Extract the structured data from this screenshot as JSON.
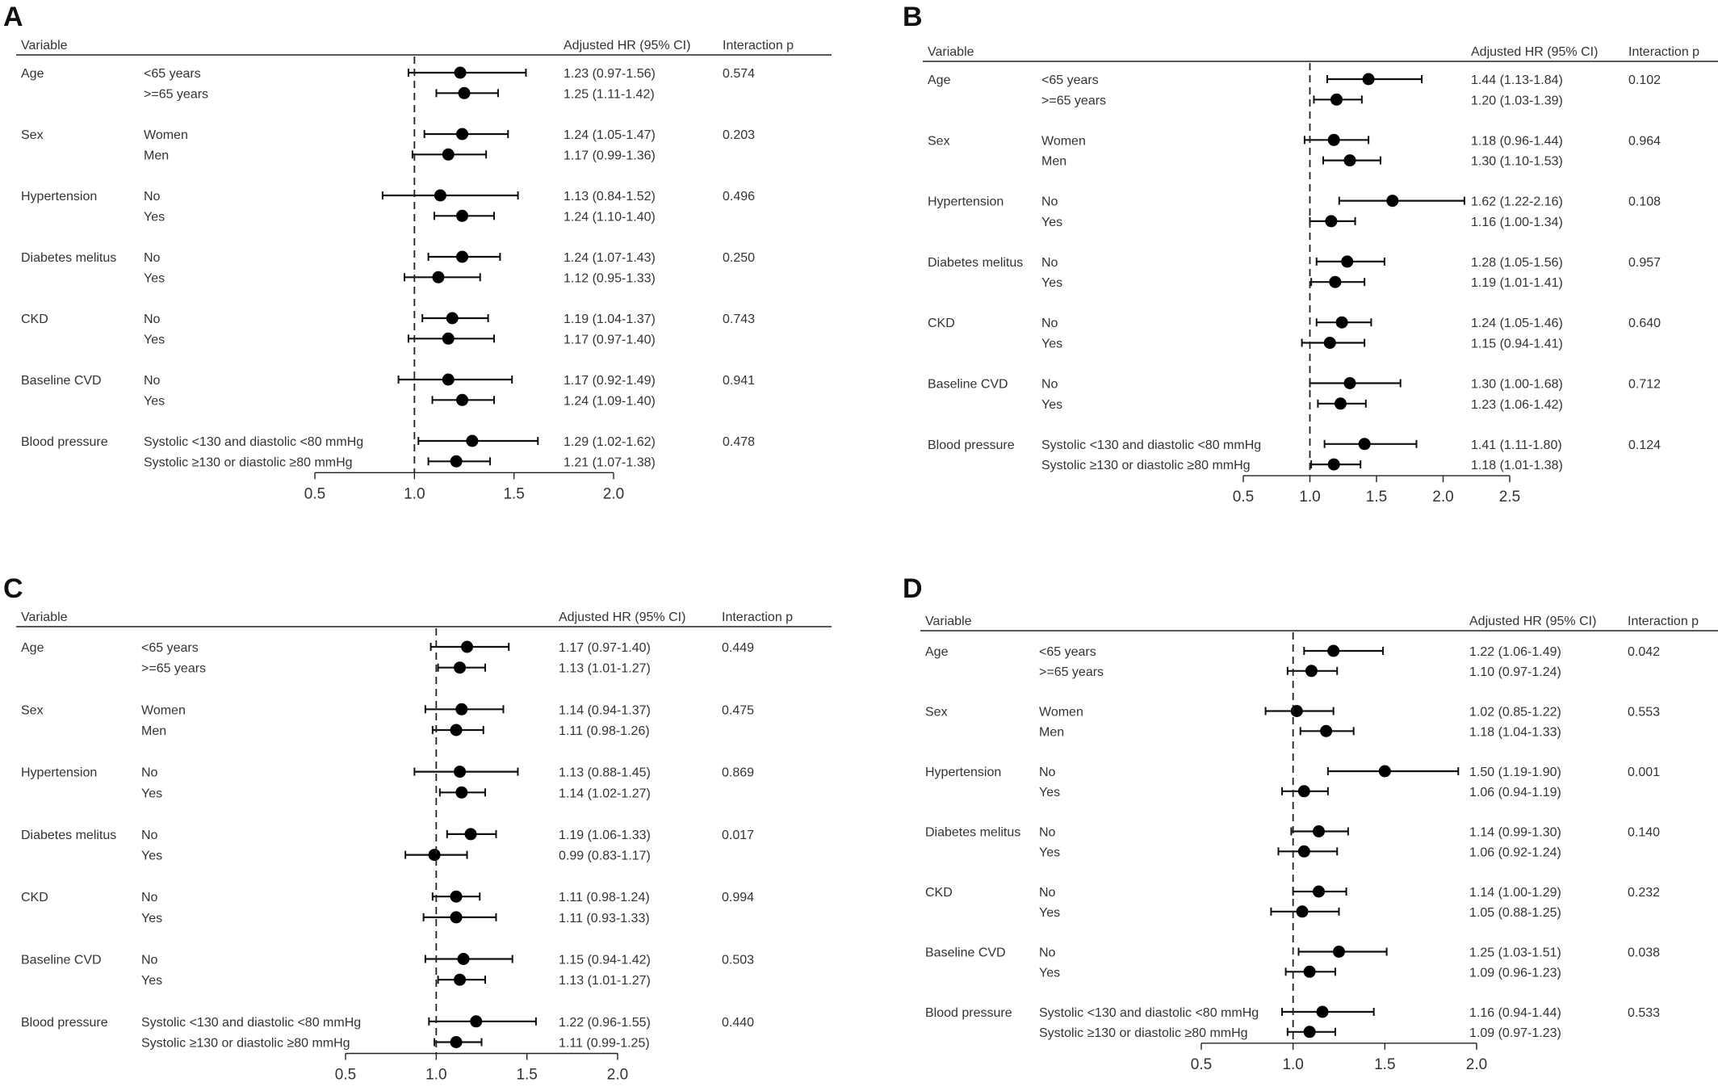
{
  "columns": {
    "variable": "Variable",
    "hr": "Adjusted HR (95% CI)",
    "interaction": "Interaction p"
  },
  "chart_data": [
    {
      "type": "forest",
      "panel": "A",
      "xlim": [
        0.5,
        2.0
      ],
      "xticks": [
        "0.5",
        "1.0",
        "1.5",
        "2.0"
      ],
      "xtick_values": [
        0.5,
        1.0,
        1.5,
        2.0
      ],
      "reference_line": 1.0,
      "groups": [
        {
          "variable": "Age",
          "p": "0.574",
          "rows": [
            {
              "sub": "<65 years",
              "hr": 1.23,
              "lo": 0.97,
              "hi": 1.56,
              "label": "1.23 (0.97-1.56)"
            },
            {
              "sub": ">=65 years",
              "hr": 1.25,
              "lo": 1.11,
              "hi": 1.42,
              "label": "1.25 (1.11-1.42)"
            }
          ]
        },
        {
          "variable": "Sex",
          "p": "0.203",
          "rows": [
            {
              "sub": "Women",
              "hr": 1.24,
              "lo": 1.05,
              "hi": 1.47,
              "label": "1.24 (1.05-1.47)"
            },
            {
              "sub": "Men",
              "hr": 1.17,
              "lo": 0.99,
              "hi": 1.36,
              "label": "1.17 (0.99-1.36)"
            }
          ]
        },
        {
          "variable": "Hypertension",
          "p": "0.496",
          "rows": [
            {
              "sub": "No",
              "hr": 1.13,
              "lo": 0.84,
              "hi": 1.52,
              "label": "1.13 (0.84-1.52)"
            },
            {
              "sub": "Yes",
              "hr": 1.24,
              "lo": 1.1,
              "hi": 1.4,
              "label": "1.24 (1.10-1.40)"
            }
          ]
        },
        {
          "variable": "Diabetes melitus",
          "p": "0.250",
          "rows": [
            {
              "sub": "No",
              "hr": 1.24,
              "lo": 1.07,
              "hi": 1.43,
              "label": "1.24 (1.07-1.43)"
            },
            {
              "sub": "Yes",
              "hr": 1.12,
              "lo": 0.95,
              "hi": 1.33,
              "label": "1.12 (0.95-1.33)"
            }
          ]
        },
        {
          "variable": "CKD",
          "p": "0.743",
          "rows": [
            {
              "sub": "No",
              "hr": 1.19,
              "lo": 1.04,
              "hi": 1.37,
              "label": "1.19 (1.04-1.37)"
            },
            {
              "sub": "Yes",
              "hr": 1.17,
              "lo": 0.97,
              "hi": 1.4,
              "label": "1.17 (0.97-1.40)"
            }
          ]
        },
        {
          "variable": "Baseline CVD",
          "p": "0.941",
          "rows": [
            {
              "sub": "No",
              "hr": 1.17,
              "lo": 0.92,
              "hi": 1.49,
              "label": "1.17 (0.92-1.49)"
            },
            {
              "sub": "Yes",
              "hr": 1.24,
              "lo": 1.09,
              "hi": 1.4,
              "label": "1.24 (1.09-1.40)"
            }
          ]
        },
        {
          "variable": "Blood pressure",
          "p": "0.478",
          "rows": [
            {
              "sub": "Systolic <130 and diastolic <80 mmHg",
              "hr": 1.29,
              "lo": 1.02,
              "hi": 1.62,
              "label": "1.29 (1.02-1.62)"
            },
            {
              "sub": "Systolic ≥130 or diastolic ≥80 mmHg",
              "hr": 1.21,
              "lo": 1.07,
              "hi": 1.38,
              "label": "1.21 (1.07-1.38)"
            }
          ]
        }
      ]
    },
    {
      "type": "forest",
      "panel": "B",
      "xlim": [
        0.5,
        2.5
      ],
      "xticks": [
        "0.5",
        "1.0",
        "1.5",
        "2.0",
        "2.5"
      ],
      "xtick_values": [
        0.5,
        1.0,
        1.5,
        2.0,
        2.5
      ],
      "reference_line": 1.0,
      "groups": [
        {
          "variable": "Age",
          "p": "0.102",
          "rows": [
            {
              "sub": "<65 years",
              "hr": 1.44,
              "lo": 1.13,
              "hi": 1.84,
              "label": "1.44 (1.13-1.84)"
            },
            {
              "sub": ">=65 years",
              "hr": 1.2,
              "lo": 1.03,
              "hi": 1.39,
              "label": "1.20 (1.03-1.39)"
            }
          ]
        },
        {
          "variable": "Sex",
          "p": "0.964",
          "rows": [
            {
              "sub": "Women",
              "hr": 1.18,
              "lo": 0.96,
              "hi": 1.44,
              "label": "1.18 (0.96-1.44)"
            },
            {
              "sub": "Men",
              "hr": 1.3,
              "lo": 1.1,
              "hi": 1.53,
              "label": "1.30 (1.10-1.53)"
            }
          ]
        },
        {
          "variable": "Hypertension",
          "p": "0.108",
          "rows": [
            {
              "sub": "No",
              "hr": 1.62,
              "lo": 1.22,
              "hi": 2.16,
              "label": "1.62 (1.22-2.16)"
            },
            {
              "sub": "Yes",
              "hr": 1.16,
              "lo": 1.0,
              "hi": 1.34,
              "label": "1.16 (1.00-1.34)"
            }
          ]
        },
        {
          "variable": "Diabetes melitus",
          "p": "0.957",
          "rows": [
            {
              "sub": "No",
              "hr": 1.28,
              "lo": 1.05,
              "hi": 1.56,
              "label": "1.28 (1.05-1.56)"
            },
            {
              "sub": "Yes",
              "hr": 1.19,
              "lo": 1.01,
              "hi": 1.41,
              "label": "1.19 (1.01-1.41)"
            }
          ]
        },
        {
          "variable": "CKD",
          "p": "0.640",
          "rows": [
            {
              "sub": "No",
              "hr": 1.24,
              "lo": 1.05,
              "hi": 1.46,
              "label": "1.24 (1.05-1.46)"
            },
            {
              "sub": "Yes",
              "hr": 1.15,
              "lo": 0.94,
              "hi": 1.41,
              "label": "1.15 (0.94-1.41)"
            }
          ]
        },
        {
          "variable": "Baseline CVD",
          "p": "0.712",
          "rows": [
            {
              "sub": "No",
              "hr": 1.3,
              "lo": 1.0,
              "hi": 1.68,
              "label": "1.30 (1.00-1.68)"
            },
            {
              "sub": "Yes",
              "hr": 1.23,
              "lo": 1.06,
              "hi": 1.42,
              "label": "1.23 (1.06-1.42)"
            }
          ]
        },
        {
          "variable": "Blood pressure",
          "p": "0.124",
          "rows": [
            {
              "sub": "Systolic <130 and diastolic <80 mmHg",
              "hr": 1.41,
              "lo": 1.11,
              "hi": 1.8,
              "label": "1.41 (1.11-1.80)"
            },
            {
              "sub": "Systolic ≥130 or diastolic ≥80 mmHg",
              "hr": 1.18,
              "lo": 1.01,
              "hi": 1.38,
              "label": "1.18 (1.01-1.38)"
            }
          ]
        }
      ]
    },
    {
      "type": "forest",
      "panel": "C",
      "xlim": [
        0.5,
        2.0
      ],
      "xticks": [
        "0.5",
        "1.0",
        "1.5",
        "2.0"
      ],
      "xtick_values": [
        0.5,
        1.0,
        1.5,
        2.0
      ],
      "reference_line": 1.0,
      "groups": [
        {
          "variable": "Age",
          "p": "0.449",
          "rows": [
            {
              "sub": "<65 years",
              "hr": 1.17,
              "lo": 0.97,
              "hi": 1.4,
              "label": "1.17 (0.97-1.40)"
            },
            {
              "sub": ">=65 years",
              "hr": 1.13,
              "lo": 1.01,
              "hi": 1.27,
              "label": "1.13 (1.01-1.27)"
            }
          ]
        },
        {
          "variable": "Sex",
          "p": "0.475",
          "rows": [
            {
              "sub": "Women",
              "hr": 1.14,
              "lo": 0.94,
              "hi": 1.37,
              "label": "1.14 (0.94-1.37)"
            },
            {
              "sub": "Men",
              "hr": 1.11,
              "lo": 0.98,
              "hi": 1.26,
              "label": "1.11 (0.98-1.26)"
            }
          ]
        },
        {
          "variable": "Hypertension",
          "p": "0.869",
          "rows": [
            {
              "sub": "No",
              "hr": 1.13,
              "lo": 0.88,
              "hi": 1.45,
              "label": "1.13 (0.88-1.45)"
            },
            {
              "sub": "Yes",
              "hr": 1.14,
              "lo": 1.02,
              "hi": 1.27,
              "label": "1.14 (1.02-1.27)"
            }
          ]
        },
        {
          "variable": "Diabetes melitus",
          "p": "0.017",
          "rows": [
            {
              "sub": "No",
              "hr": 1.19,
              "lo": 1.06,
              "hi": 1.33,
              "label": "1.19 (1.06-1.33)"
            },
            {
              "sub": "Yes",
              "hr": 0.99,
              "lo": 0.83,
              "hi": 1.17,
              "label": "0.99 (0.83-1.17)"
            }
          ]
        },
        {
          "variable": "CKD",
          "p": "0.994",
          "rows": [
            {
              "sub": "No",
              "hr": 1.11,
              "lo": 0.98,
              "hi": 1.24,
              "label": "1.11 (0.98-1.24)"
            },
            {
              "sub": "Yes",
              "hr": 1.11,
              "lo": 0.93,
              "hi": 1.33,
              "label": "1.11 (0.93-1.33)"
            }
          ]
        },
        {
          "variable": "Baseline CVD",
          "p": "0.503",
          "rows": [
            {
              "sub": "No",
              "hr": 1.15,
              "lo": 0.94,
              "hi": 1.42,
              "label": "1.15 (0.94-1.42)"
            },
            {
              "sub": "Yes",
              "hr": 1.13,
              "lo": 1.01,
              "hi": 1.27,
              "label": "1.13 (1.01-1.27)"
            }
          ]
        },
        {
          "variable": "Blood pressure",
          "p": "0.440",
          "rows": [
            {
              "sub": "Systolic <130 and diastolic <80 mmHg",
              "hr": 1.22,
              "lo": 0.96,
              "hi": 1.55,
              "label": "1.22 (0.96-1.55)"
            },
            {
              "sub": "Systolic ≥130 or diastolic ≥80 mmHg",
              "hr": 1.11,
              "lo": 0.99,
              "hi": 1.25,
              "label": "1.11 (0.99-1.25)"
            }
          ]
        }
      ]
    },
    {
      "type": "forest",
      "panel": "D",
      "xlim": [
        0.5,
        2.0
      ],
      "xticks": [
        "0.5",
        "1.0",
        "1.5",
        "2.0"
      ],
      "xtick_values": [
        0.5,
        1.0,
        1.5,
        2.0
      ],
      "reference_line": 1.0,
      "groups": [
        {
          "variable": "Age",
          "p": "0.042",
          "rows": [
            {
              "sub": "<65 years",
              "hr": 1.22,
              "lo": 1.06,
              "hi": 1.49,
              "label": "1.22 (1.06-1.49)"
            },
            {
              "sub": ">=65 years",
              "hr": 1.1,
              "lo": 0.97,
              "hi": 1.24,
              "label": "1.10 (0.97-1.24)"
            }
          ]
        },
        {
          "variable": "Sex",
          "p": "0.553",
          "rows": [
            {
              "sub": "Women",
              "hr": 1.02,
              "lo": 0.85,
              "hi": 1.22,
              "label": "1.02 (0.85-1.22)"
            },
            {
              "sub": "Men",
              "hr": 1.18,
              "lo": 1.04,
              "hi": 1.33,
              "label": "1.18 (1.04-1.33)"
            }
          ]
        },
        {
          "variable": "Hypertension",
          "p": "0.001",
          "rows": [
            {
              "sub": "No",
              "hr": 1.5,
              "lo": 1.19,
              "hi": 1.9,
              "label": "1.50 (1.19-1.90)"
            },
            {
              "sub": "Yes",
              "hr": 1.06,
              "lo": 0.94,
              "hi": 1.19,
              "label": "1.06 (0.94-1.19)"
            }
          ]
        },
        {
          "variable": "Diabetes melitus",
          "p": "0.140",
          "rows": [
            {
              "sub": "No",
              "hr": 1.14,
              "lo": 0.99,
              "hi": 1.3,
              "label": "1.14 (0.99-1.30)"
            },
            {
              "sub": "Yes",
              "hr": 1.06,
              "lo": 0.92,
              "hi": 1.24,
              "label": "1.06 (0.92-1.24)"
            }
          ]
        },
        {
          "variable": "CKD",
          "p": "0.232",
          "rows": [
            {
              "sub": "No",
              "hr": 1.14,
              "lo": 1.0,
              "hi": 1.29,
              "label": "1.14 (1.00-1.29)"
            },
            {
              "sub": "Yes",
              "hr": 1.05,
              "lo": 0.88,
              "hi": 1.25,
              "label": "1.05 (0.88-1.25)"
            }
          ]
        },
        {
          "variable": "Baseline CVD",
          "p": "0.038",
          "rows": [
            {
              "sub": "No",
              "hr": 1.25,
              "lo": 1.03,
              "hi": 1.51,
              "label": "1.25 (1.03-1.51)"
            },
            {
              "sub": "Yes",
              "hr": 1.09,
              "lo": 0.96,
              "hi": 1.23,
              "label": "1.09 (0.96-1.23)"
            }
          ]
        },
        {
          "variable": "Blood pressure",
          "p": "0.533",
          "rows": [
            {
              "sub": "Systolic <130 and diastolic <80 mmHg",
              "hr": 1.16,
              "lo": 0.94,
              "hi": 1.44,
              "label": "1.16 (0.94-1.44)"
            },
            {
              "sub": "Systolic ≥130 or diastolic ≥80 mmHg",
              "hr": 1.09,
              "lo": 0.97,
              "hi": 1.23,
              "label": "1.09 (0.97-1.23)"
            }
          ]
        }
      ]
    }
  ]
}
